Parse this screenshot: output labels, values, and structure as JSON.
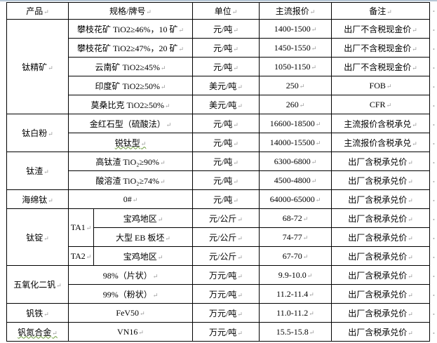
{
  "headers": [
    "产品",
    "规格/牌号",
    "单位",
    "主流报价",
    "备注"
  ],
  "groups": {
    "titanium_concentrate": "钛精矿",
    "titanium_dioxide": "钛白粉",
    "titanium_slag": "钛渣",
    "sponge_titanium": "海绵钛",
    "titanium_ingot": "钛锭",
    "vanadium_pentoxide": "五氧化二钒",
    "ferrovanadium": "钒铁",
    "vanadium_nitrogen": "钒氮合金"
  },
  "ingot_grades": {
    "ta1": "TA1",
    "ta2": "TA2"
  },
  "rows": [
    {
      "spec": "攀枝花矿 TiO2≥46%，10 矿",
      "unit": "元/吨",
      "price": "1400-1500",
      "note": "出厂不含税现金价"
    },
    {
      "spec": "攀枝花矿 TiO2≥47%，20 矿",
      "unit": "元/吨",
      "price": "1450-1550",
      "note": "出厂不含税现金价"
    },
    {
      "spec": "云南矿 TiO2≥45%",
      "unit": "元/吨",
      "price": "1050-1150",
      "note": "出厂不含税现金价"
    },
    {
      "spec": "印度矿 TiO2≥50%",
      "unit": "美元/吨",
      "price": "250",
      "note": "FOB"
    },
    {
      "spec": "莫桑比克 TiO2≥50%",
      "unit": "美元/吨",
      "price": "260",
      "note": "CFR"
    },
    {
      "spec": "金红石型（硫酸法）",
      "unit": "元/吨",
      "price": "16600-18500",
      "note": "主流报价含税承兑"
    },
    {
      "spec": "锐钛型",
      "unit": "元/吨",
      "price": "14000-15500",
      "note": "主流报价含税承兑"
    },
    {
      "spec": "高钛渣 TiO₂≥90%",
      "unit": "元/吨",
      "price": "6300-6800",
      "note": "出厂含税承兑价"
    },
    {
      "spec": "酸溶渣 TiO₂≥74%",
      "unit": "元/吨",
      "price": "4500-4800",
      "note": "出厂含税承兑价"
    },
    {
      "spec": "0#",
      "unit": "元/吨",
      "price": "64000-65000",
      "note": "出厂含税承兑价"
    },
    {
      "spec": "宝鸡地区",
      "unit": "元/公斤",
      "price": "68-72",
      "note": "出厂含税承兑价"
    },
    {
      "spec": "大型 EB 板坯",
      "unit": "元/公斤",
      "price": "74-77",
      "note": "出厂含税承兑价"
    },
    {
      "spec": "宝鸡地区",
      "unit": "元/公斤",
      "price": "67-70",
      "note": "出厂含税承兑价"
    },
    {
      "spec": "98%（片状）",
      "unit": "万元/吨",
      "price": "9.9-10.0",
      "note": "出厂含税承兑价"
    },
    {
      "spec": "99%（粉状）",
      "unit": "万元/吨",
      "price": "11.2-11.4",
      "note": "出厂含税承兑价"
    },
    {
      "spec": "FeV50",
      "unit": "万元/吨",
      "price": "11.0-11.2",
      "note": "出厂含税承兑价"
    },
    {
      "spec": "VN16",
      "unit": "万元/吨",
      "price": "15.5-15.8",
      "note": "出厂含税承兑价"
    }
  ]
}
